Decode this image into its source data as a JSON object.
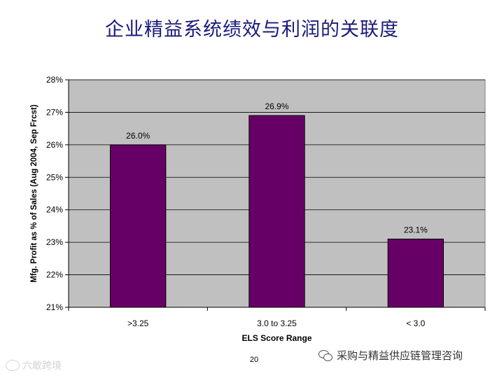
{
  "slide": {
    "title": "企业精益系统绩效与利润的关联度",
    "page_number": "20",
    "wechat_credit": "采购与精益供应链管理咨询",
    "watermark": "六敢跨境"
  },
  "chart_data": {
    "type": "bar",
    "title": "",
    "xlabel": "ELS Score Range",
    "ylabel": "Mfg. Profit as % of Sales (Aug 2004, Sep Frcst)",
    "categories": [
      ">3.25",
      "3.0 to 3.25",
      "< 3.0"
    ],
    "values": [
      26.0,
      26.9,
      23.1
    ],
    "data_labels": [
      "26.0%",
      "26.9%",
      "23.1%"
    ],
    "ylim": [
      21,
      28
    ],
    "yticks": [
      21,
      22,
      23,
      24,
      25,
      26,
      27,
      28
    ],
    "ytick_labels": [
      "21%",
      "22%",
      "23%",
      "24%",
      "25%",
      "26%",
      "27%",
      "28%"
    ],
    "grid": true,
    "legend": "none",
    "colors": {
      "bar": "#660066",
      "plot_background": "#c0c0c0",
      "gridline": "#000000"
    }
  }
}
